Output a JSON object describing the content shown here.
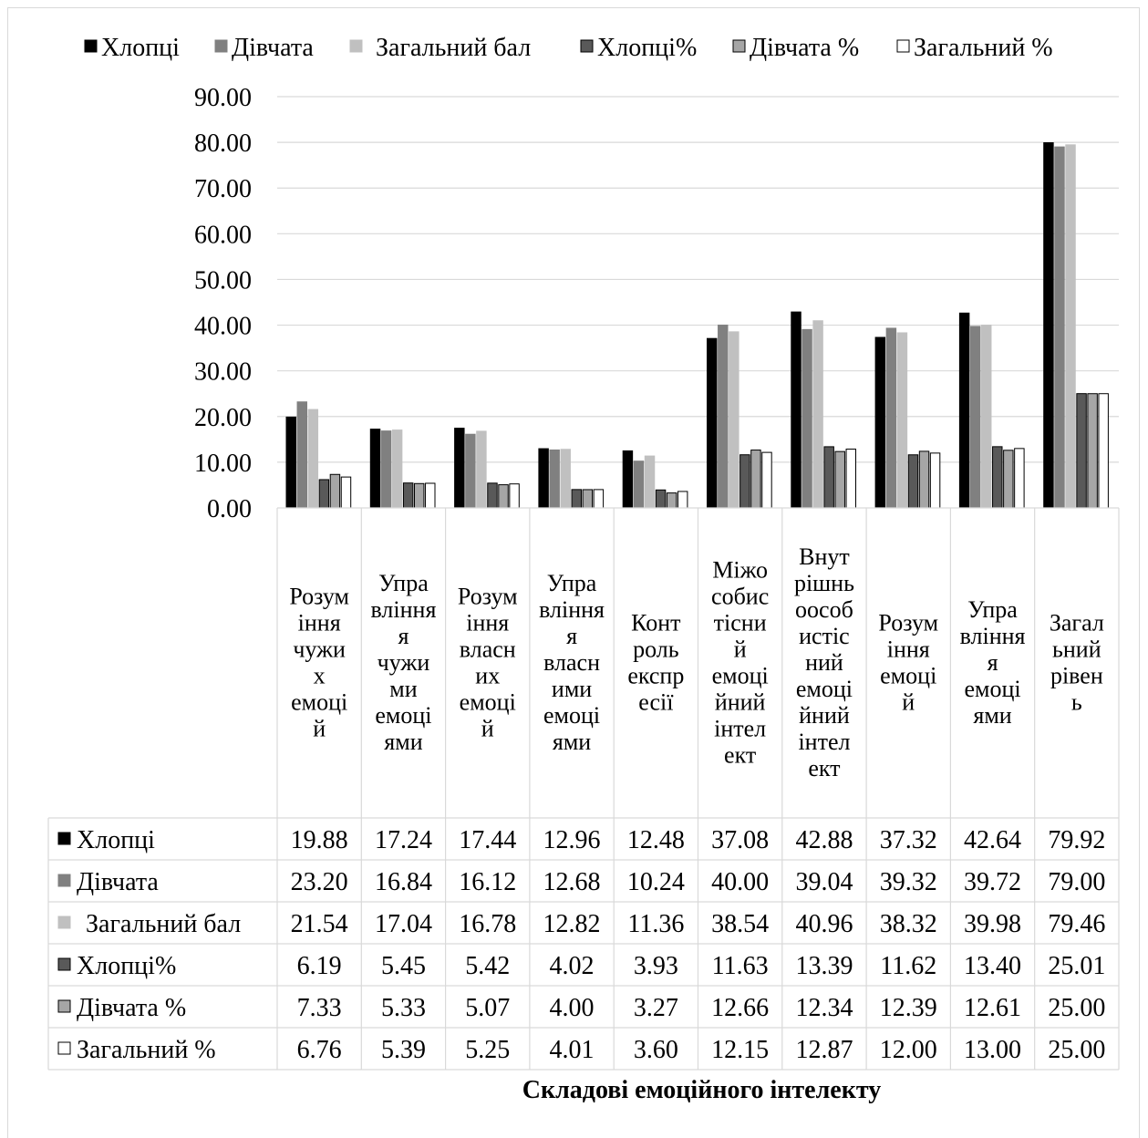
{
  "chart_data": {
    "type": "bar",
    "title": "",
    "xlabel": "Складові емоційного інтелекту",
    "ylabel": "",
    "ylim": [
      0,
      90
    ],
    "yticks": [
      "0.00",
      "10.00",
      "20.00",
      "30.00",
      "40.00",
      "50.00",
      "60.00",
      "70.00",
      "80.00",
      "90.00"
    ],
    "grid": true,
    "legend_position": "top",
    "categories": [
      "Розуміння чужих емоцій",
      "Управління чужими емоціями",
      "Розуміння власних емоцій",
      "Управління власними емоціями",
      "Контроль експресії",
      "Міжособистісний емоційний інтелект",
      "Внутрішньоособистісний емоційний інтелект",
      "Розуміння емоцій",
      "Управління емоціями",
      "Загальний рівень"
    ],
    "category_lines": [
      [
        "Розум",
        "іння",
        "чужи",
        "х",
        "емоці",
        "й"
      ],
      [
        "Упра",
        "вління",
        "я",
        "чужи",
        "ми",
        "емоці",
        "ями"
      ],
      [
        "Розум",
        "іння",
        "власн",
        "их",
        "емоці",
        "й"
      ],
      [
        "Упра",
        "вління",
        "я",
        "власн",
        "ими",
        "емоці",
        "ями"
      ],
      [
        "Конт",
        "роль",
        "експр",
        "есії"
      ],
      [
        "Міжо",
        "собис",
        "тісни",
        "й",
        "емоці",
        "йний",
        "інтел",
        "ект"
      ],
      [
        "Внут",
        "рішнь",
        "ооcоб",
        "истіс",
        "ний",
        "емоці",
        "йний",
        "інтел",
        "ект"
      ],
      [
        "Розум",
        "іння",
        "емоці",
        "й"
      ],
      [
        "Упра",
        "вління",
        "я",
        "емоці",
        "ями"
      ],
      [
        "Загал",
        "ьний",
        "рівен",
        "ь"
      ]
    ],
    "series": [
      {
        "name": "Хлопці",
        "color": "#000000",
        "stroke": "#000000",
        "legend_label": "Хлопці",
        "values": [
          19.88,
          17.24,
          17.44,
          12.96,
          12.48,
          37.08,
          42.88,
          37.32,
          42.64,
          79.92
        ],
        "labels": [
          "19.88",
          "17.24",
          "17.44",
          "12.96",
          "12.48",
          "37.08",
          "42.88",
          "37.32",
          "42.64",
          "79.92"
        ]
      },
      {
        "name": "Дівчата",
        "color": "#808080",
        "stroke": "#808080",
        "legend_label": "Дівчата",
        "values": [
          23.2,
          16.84,
          16.12,
          12.68,
          10.24,
          40.0,
          39.04,
          39.32,
          39.72,
          79.0
        ],
        "labels": [
          "23.20",
          "16.84",
          "16.12",
          "12.68",
          "10.24",
          "40.00",
          "39.04",
          "39.32",
          "39.72",
          "79.00"
        ]
      },
      {
        "name": "Загальний бал",
        "color": "#c0c0c0",
        "stroke": "#c0c0c0",
        "legend_label": "Загальний бал",
        "values": [
          21.54,
          17.04,
          16.78,
          12.82,
          11.36,
          38.54,
          40.96,
          38.32,
          39.98,
          79.46
        ],
        "labels": [
          "21.54",
          "17.04",
          "16.78",
          "12.82",
          "11.36",
          "38.54",
          "40.96",
          "38.32",
          "39.98",
          "79.46"
        ]
      },
      {
        "name": "Хлопці%",
        "color": "#595959",
        "stroke": "#000000",
        "legend_label": "Хлопці%",
        "values": [
          6.19,
          5.45,
          5.42,
          4.02,
          3.93,
          11.63,
          13.39,
          11.62,
          13.4,
          25.01
        ],
        "labels": [
          "6.19",
          "5.45",
          "5.42",
          "4.02",
          "3.93",
          "11.63",
          "13.39",
          "11.62",
          "13.40",
          "25.01"
        ]
      },
      {
        "name": "Дівчата %",
        "color": "#a6a6a6",
        "stroke": "#000000",
        "legend_label": "Дівчата %",
        "values": [
          7.33,
          5.33,
          5.07,
          4.0,
          3.27,
          12.66,
          12.34,
          12.39,
          12.61,
          25.0
        ],
        "labels": [
          "7.33",
          "5.33",
          "5.07",
          "4.00",
          "3.27",
          "12.66",
          "12.34",
          "12.39",
          "12.61",
          "25.00"
        ]
      },
      {
        "name": "Загальний %",
        "color": "#ffffff",
        "stroke": "#000000",
        "legend_label": "Загальний %",
        "values": [
          6.76,
          5.39,
          5.25,
          4.01,
          3.6,
          12.15,
          12.87,
          12.0,
          13.0,
          25.0
        ],
        "labels": [
          "6.76",
          "5.39",
          "5.25",
          "4.01",
          "3.60",
          "12.15",
          "12.87",
          "12.00",
          "13.00",
          "25.00"
        ]
      }
    ]
  }
}
